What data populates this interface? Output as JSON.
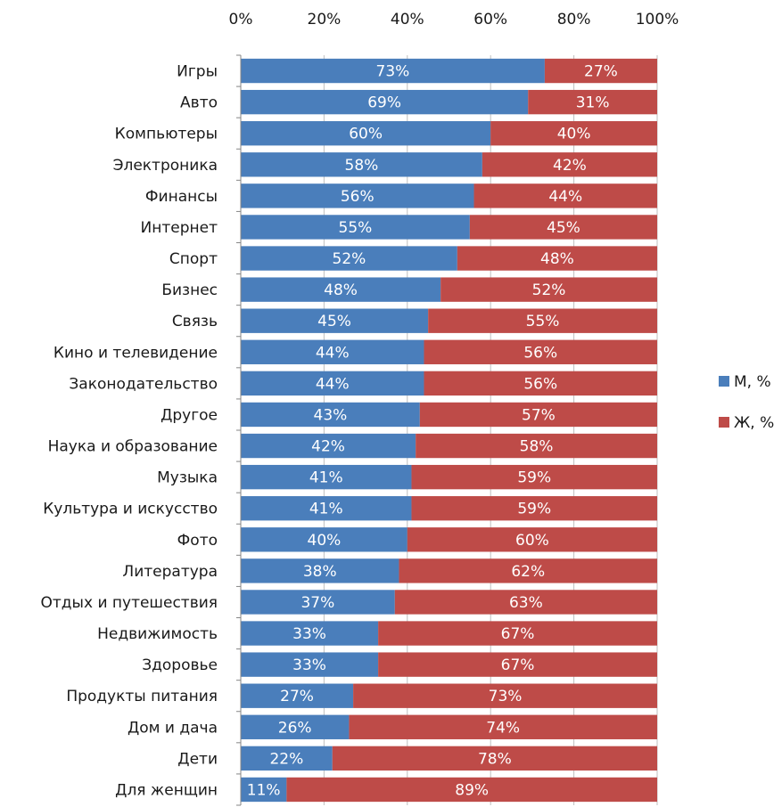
{
  "chart_data": {
    "type": "bar",
    "orientation": "horizontal",
    "stacked": "100%",
    "categories": [
      "Игры",
      "Авто",
      "Компьютеры",
      "Электроника",
      "Финансы",
      "Интернет",
      "Спорт",
      "Бизнес",
      "Связь",
      "Кино и телевидение",
      "Законодательство",
      "Другое",
      "Наука и образование",
      "Музыка",
      "Культура и искусство",
      "Фото",
      "Литература",
      "Отдых и путешествия",
      "Недвижимость",
      "Здоровье",
      "Продукты питания",
      "Дом и дача",
      "Дети",
      "Для женщин"
    ],
    "series": [
      {
        "name": "М, %",
        "color": "#4a7ebb",
        "values": [
          73,
          69,
          60,
          58,
          56,
          55,
          52,
          48,
          45,
          44,
          44,
          43,
          42,
          41,
          41,
          40,
          38,
          37,
          33,
          33,
          27,
          26,
          22,
          11
        ]
      },
      {
        "name": "Ж, %",
        "color": "#be4b48",
        "values": [
          27,
          31,
          40,
          42,
          44,
          45,
          48,
          52,
          55,
          56,
          56,
          57,
          58,
          59,
          59,
          60,
          62,
          63,
          67,
          67,
          73,
          74,
          78,
          89
        ]
      }
    ],
    "xlim": [
      0,
      100
    ],
    "xticks": [
      "0%",
      "20%",
      "40%",
      "60%",
      "80%",
      "100%"
    ],
    "x_axis_position": "top",
    "grid": true,
    "legend_position": "right"
  }
}
